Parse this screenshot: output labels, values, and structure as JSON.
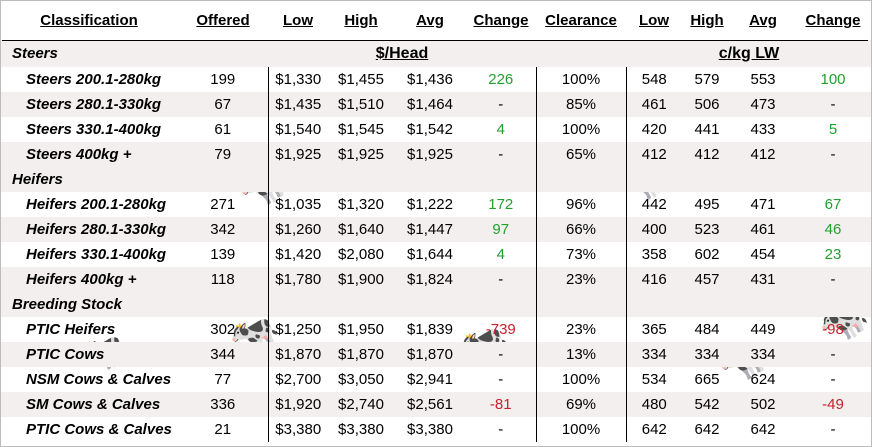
{
  "headers": [
    "Classification",
    "Offered",
    "Low",
    "High",
    "Avg",
    "Change",
    "Clearance",
    "Low",
    "High",
    "Avg",
    "Change"
  ],
  "units": {
    "head": "$/Head",
    "kg": "c/kg LW"
  },
  "colors": {
    "positive": "#21a02c",
    "negative": "#c8202c",
    "alt_row": "#f4efef"
  },
  "sections": [
    {
      "label": "Steers",
      "rows": [
        {
          "classification": "Steers 200.1-280kg",
          "offered": "199",
          "low": "$1,330",
          "high": "$1,455",
          "avg": "$1,436",
          "change": "226",
          "clearance": "100%",
          "low_kg": "548",
          "high_kg": "579",
          "avg_kg": "553",
          "change_kg": "100"
        },
        {
          "classification": "Steers 280.1-330kg",
          "offered": "67",
          "low": "$1,435",
          "high": "$1,510",
          "avg": "$1,464",
          "change": "-",
          "clearance": "85%",
          "low_kg": "461",
          "high_kg": "506",
          "avg_kg": "473",
          "change_kg": "-"
        },
        {
          "classification": "Steers 330.1-400kg",
          "offered": "61",
          "low": "$1,540",
          "high": "$1,545",
          "avg": "$1,542",
          "change": "4",
          "clearance": "100%",
          "low_kg": "420",
          "high_kg": "441",
          "avg_kg": "433",
          "change_kg": "5"
        },
        {
          "classification": "Steers 400kg +",
          "offered": "79",
          "low": "$1,925",
          "high": "$1,925",
          "avg": "$1,925",
          "change": "-",
          "clearance": "65%",
          "low_kg": "412",
          "high_kg": "412",
          "avg_kg": "412",
          "change_kg": "-"
        }
      ]
    },
    {
      "label": "Heifers",
      "rows": [
        {
          "classification": "Heifers 200.1-280kg",
          "offered": "271",
          "low": "$1,035",
          "high": "$1,320",
          "avg": "$1,222",
          "change": "172",
          "clearance": "96%",
          "low_kg": "442",
          "high_kg": "495",
          "avg_kg": "471",
          "change_kg": "67"
        },
        {
          "classification": "Heifers 280.1-330kg",
          "offered": "342",
          "low": "$1,260",
          "high": "$1,640",
          "avg": "$1,447",
          "change": "97",
          "clearance": "66%",
          "low_kg": "400",
          "high_kg": "523",
          "avg_kg": "461",
          "change_kg": "46"
        },
        {
          "classification": "Heifers 330.1-400kg",
          "offered": "139",
          "low": "$1,420",
          "high": "$2,080",
          "avg": "$1,644",
          "change": "4",
          "clearance": "73%",
          "low_kg": "358",
          "high_kg": "602",
          "avg_kg": "454",
          "change_kg": "23"
        },
        {
          "classification": "Heifers 400kg +",
          "offered": "118",
          "low": "$1,780",
          "high": "$1,900",
          "avg": "$1,824",
          "change": "-",
          "clearance": "23%",
          "low_kg": "416",
          "high_kg": "457",
          "avg_kg": "431",
          "change_kg": "-"
        }
      ]
    },
    {
      "label": "Breeding Stock",
      "rows": [
        {
          "classification": "PTIC Heifers",
          "offered": "302",
          "low": "$1,250",
          "high": "$1,950",
          "avg": "$1,839",
          "change": "-739",
          "clearance": "23%",
          "low_kg": "365",
          "high_kg": "484",
          "avg_kg": "449",
          "change_kg": "-98"
        },
        {
          "classification": "PTIC Cows",
          "offered": "344",
          "low": "$1,870",
          "high": "$1,870",
          "avg": "$1,870",
          "change": "-",
          "clearance": "13%",
          "low_kg": "334",
          "high_kg": "334",
          "avg_kg": "334",
          "change_kg": "-"
        },
        {
          "classification": "NSM Cows & Calves",
          "offered": "77",
          "low": "$2,700",
          "high": "$3,050",
          "avg": "$2,941",
          "change": "-",
          "clearance": "100%",
          "low_kg": "534",
          "high_kg": "665",
          "avg_kg": "624",
          "change_kg": "-"
        },
        {
          "classification": "SM Cows & Calves",
          "offered": "336",
          "low": "$1,920",
          "high": "$2,740",
          "avg": "$2,561",
          "change": "-81",
          "clearance": "69%",
          "low_kg": "480",
          "high_kg": "542",
          "avg_kg": "502",
          "change_kg": "-49"
        },
        {
          "classification": "PTIC Cows & Calves",
          "offered": "21",
          "low": "$3,380",
          "high": "$3,380",
          "avg": "$3,380",
          "change": "-",
          "clearance": "100%",
          "low_kg": "642",
          "high_kg": "642",
          "avg_kg": "642",
          "change_kg": "-"
        }
      ]
    }
  ]
}
